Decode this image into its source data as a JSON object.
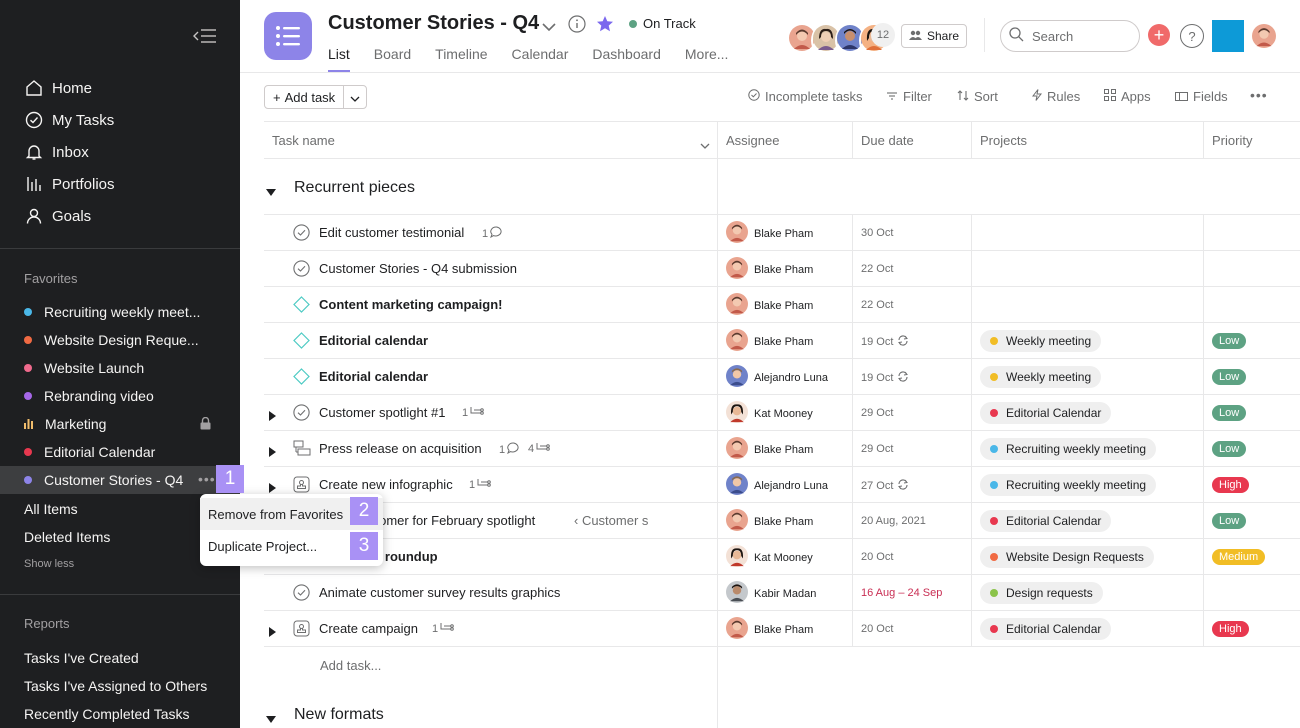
{
  "sidebar": {
    "nav": [
      {
        "label": "Home",
        "icon": "home-icon"
      },
      {
        "label": "My Tasks",
        "icon": "check-circle-icon"
      },
      {
        "label": "Inbox",
        "icon": "bell-icon"
      },
      {
        "label": "Portfolios",
        "icon": "bar-chart-icon"
      },
      {
        "label": "Goals",
        "icon": "person-icon"
      }
    ],
    "favorites_label": "Favorites",
    "favorites": [
      {
        "label": "Recruiting weekly meet...",
        "color": "#4ab7e8"
      },
      {
        "label": "Website Design Reque...",
        "color": "#f06a43"
      },
      {
        "label": "Website Launch",
        "color": "#f06a8d"
      },
      {
        "label": "Rebranding video",
        "color": "#a667e8"
      },
      {
        "label": "Marketing",
        "color": "#f1bd6c"
      },
      {
        "label": "Editorial Calendar",
        "color": "#e8384f"
      },
      {
        "label": "Customer Stories - Q4",
        "color": "#8d84e8"
      }
    ],
    "all_items": "All Items",
    "deleted_items": "Deleted Items",
    "show_less": "Show less",
    "reports_label": "Reports",
    "reports": [
      "Tasks I've Created",
      "Tasks I've Assigned to Others",
      "Recently Completed Tasks"
    ]
  },
  "markers": [
    "1",
    "2",
    "3"
  ],
  "header": {
    "title": "Customer Stories - Q4",
    "status": "On Track",
    "tabs": [
      "List",
      "Board",
      "Timeline",
      "Calendar",
      "Dashboard",
      "More..."
    ],
    "member_count": "12",
    "share_label": "Share",
    "search_placeholder": "Search",
    "add_label": "+",
    "help_label": "?"
  },
  "toolbar": {
    "add_task": "Add task",
    "incomplete": "Incomplete tasks",
    "filter": "Filter",
    "sort": "Sort",
    "rules": "Rules",
    "apps": "Apps",
    "fields": "Fields"
  },
  "table": {
    "columns": [
      "Task name",
      "Assignee",
      "Due date",
      "Projects",
      "Priority"
    ],
    "sections": [
      "Recurrent pieces",
      "New formats"
    ],
    "add_task": "Add task...",
    "rows": [
      {
        "name": "Edit customer testimonial",
        "bold": false,
        "meta": "1",
        "assignee": "Blake Pham",
        "due": "30 Oct"
      },
      {
        "name": "Customer Stories - Q4 submission",
        "bold": false,
        "assignee": "Blake Pham",
        "due": "22 Oct"
      },
      {
        "name": "Content  marketing campaign!",
        "bold": true,
        "assignee": "Blake Pham",
        "due": "22 Oct"
      },
      {
        "name": "Editorial calendar",
        "bold": true,
        "assignee": "Blake Pham",
        "due": "19 Oct",
        "project": "Weekly meeting",
        "priority": "Low"
      },
      {
        "name": "Editorial calendar",
        "bold": true,
        "assignee": "Alejandro Luna",
        "due": "19 Oct",
        "project": "Weekly meeting",
        "priority": "Low"
      },
      {
        "name": "Customer spotlight #1",
        "bold": false,
        "meta": "1",
        "assignee": "Kat Mooney",
        "due": "29 Oct",
        "project": "Editorial Calendar",
        "priority": "Low"
      },
      {
        "name": "Press release on acquisition",
        "bold": false,
        "meta": "1",
        "meta2": "4",
        "assignee": "Blake Pham",
        "due": "29 Oct",
        "project": "Recruiting weekly meeting",
        "priority": "Low"
      },
      {
        "name": "Create new infographic",
        "bold": false,
        "meta": "1",
        "assignee": "Alejandro Luna",
        "due": "27 Oct",
        "project": "Recruiting weekly meeting",
        "priority": "High"
      },
      {
        "name": "stomer for February spotlight",
        "bold": false,
        "crumb": "‹ Customer s",
        "assignee": "Blake Pham",
        "due": "20 Aug, 2021",
        "project": "Editorial Calendar",
        "priority": "Low"
      },
      {
        "name": "re roundup",
        "bold": true,
        "assignee": "Kat Mooney",
        "due": "20 Oct",
        "project": "Website Design Requests",
        "priority": "Medium"
      },
      {
        "name": "Animate customer survey results graphics",
        "bold": false,
        "assignee": "Kabir Madan",
        "due": "16 Aug – 24 Sep",
        "project": "Design requests"
      },
      {
        "name": "Create campaign",
        "bold": false,
        "meta": "1",
        "assignee": "Blake Pham",
        "due": "20 Oct",
        "project": "Editorial Calendar",
        "priority": "High"
      }
    ]
  },
  "context_menu": {
    "remove": "Remove from Favorites",
    "duplicate": "Duplicate Project..."
  },
  "colors": {
    "sidebar_bg": "#1e1f21",
    "project_purple": "#8d84e8",
    "status_green": "#5da283",
    "priority_low": "#5da283",
    "priority_high": "#e8384f",
    "priority_medium": "#f1bd25",
    "marker": "#a991f5"
  }
}
